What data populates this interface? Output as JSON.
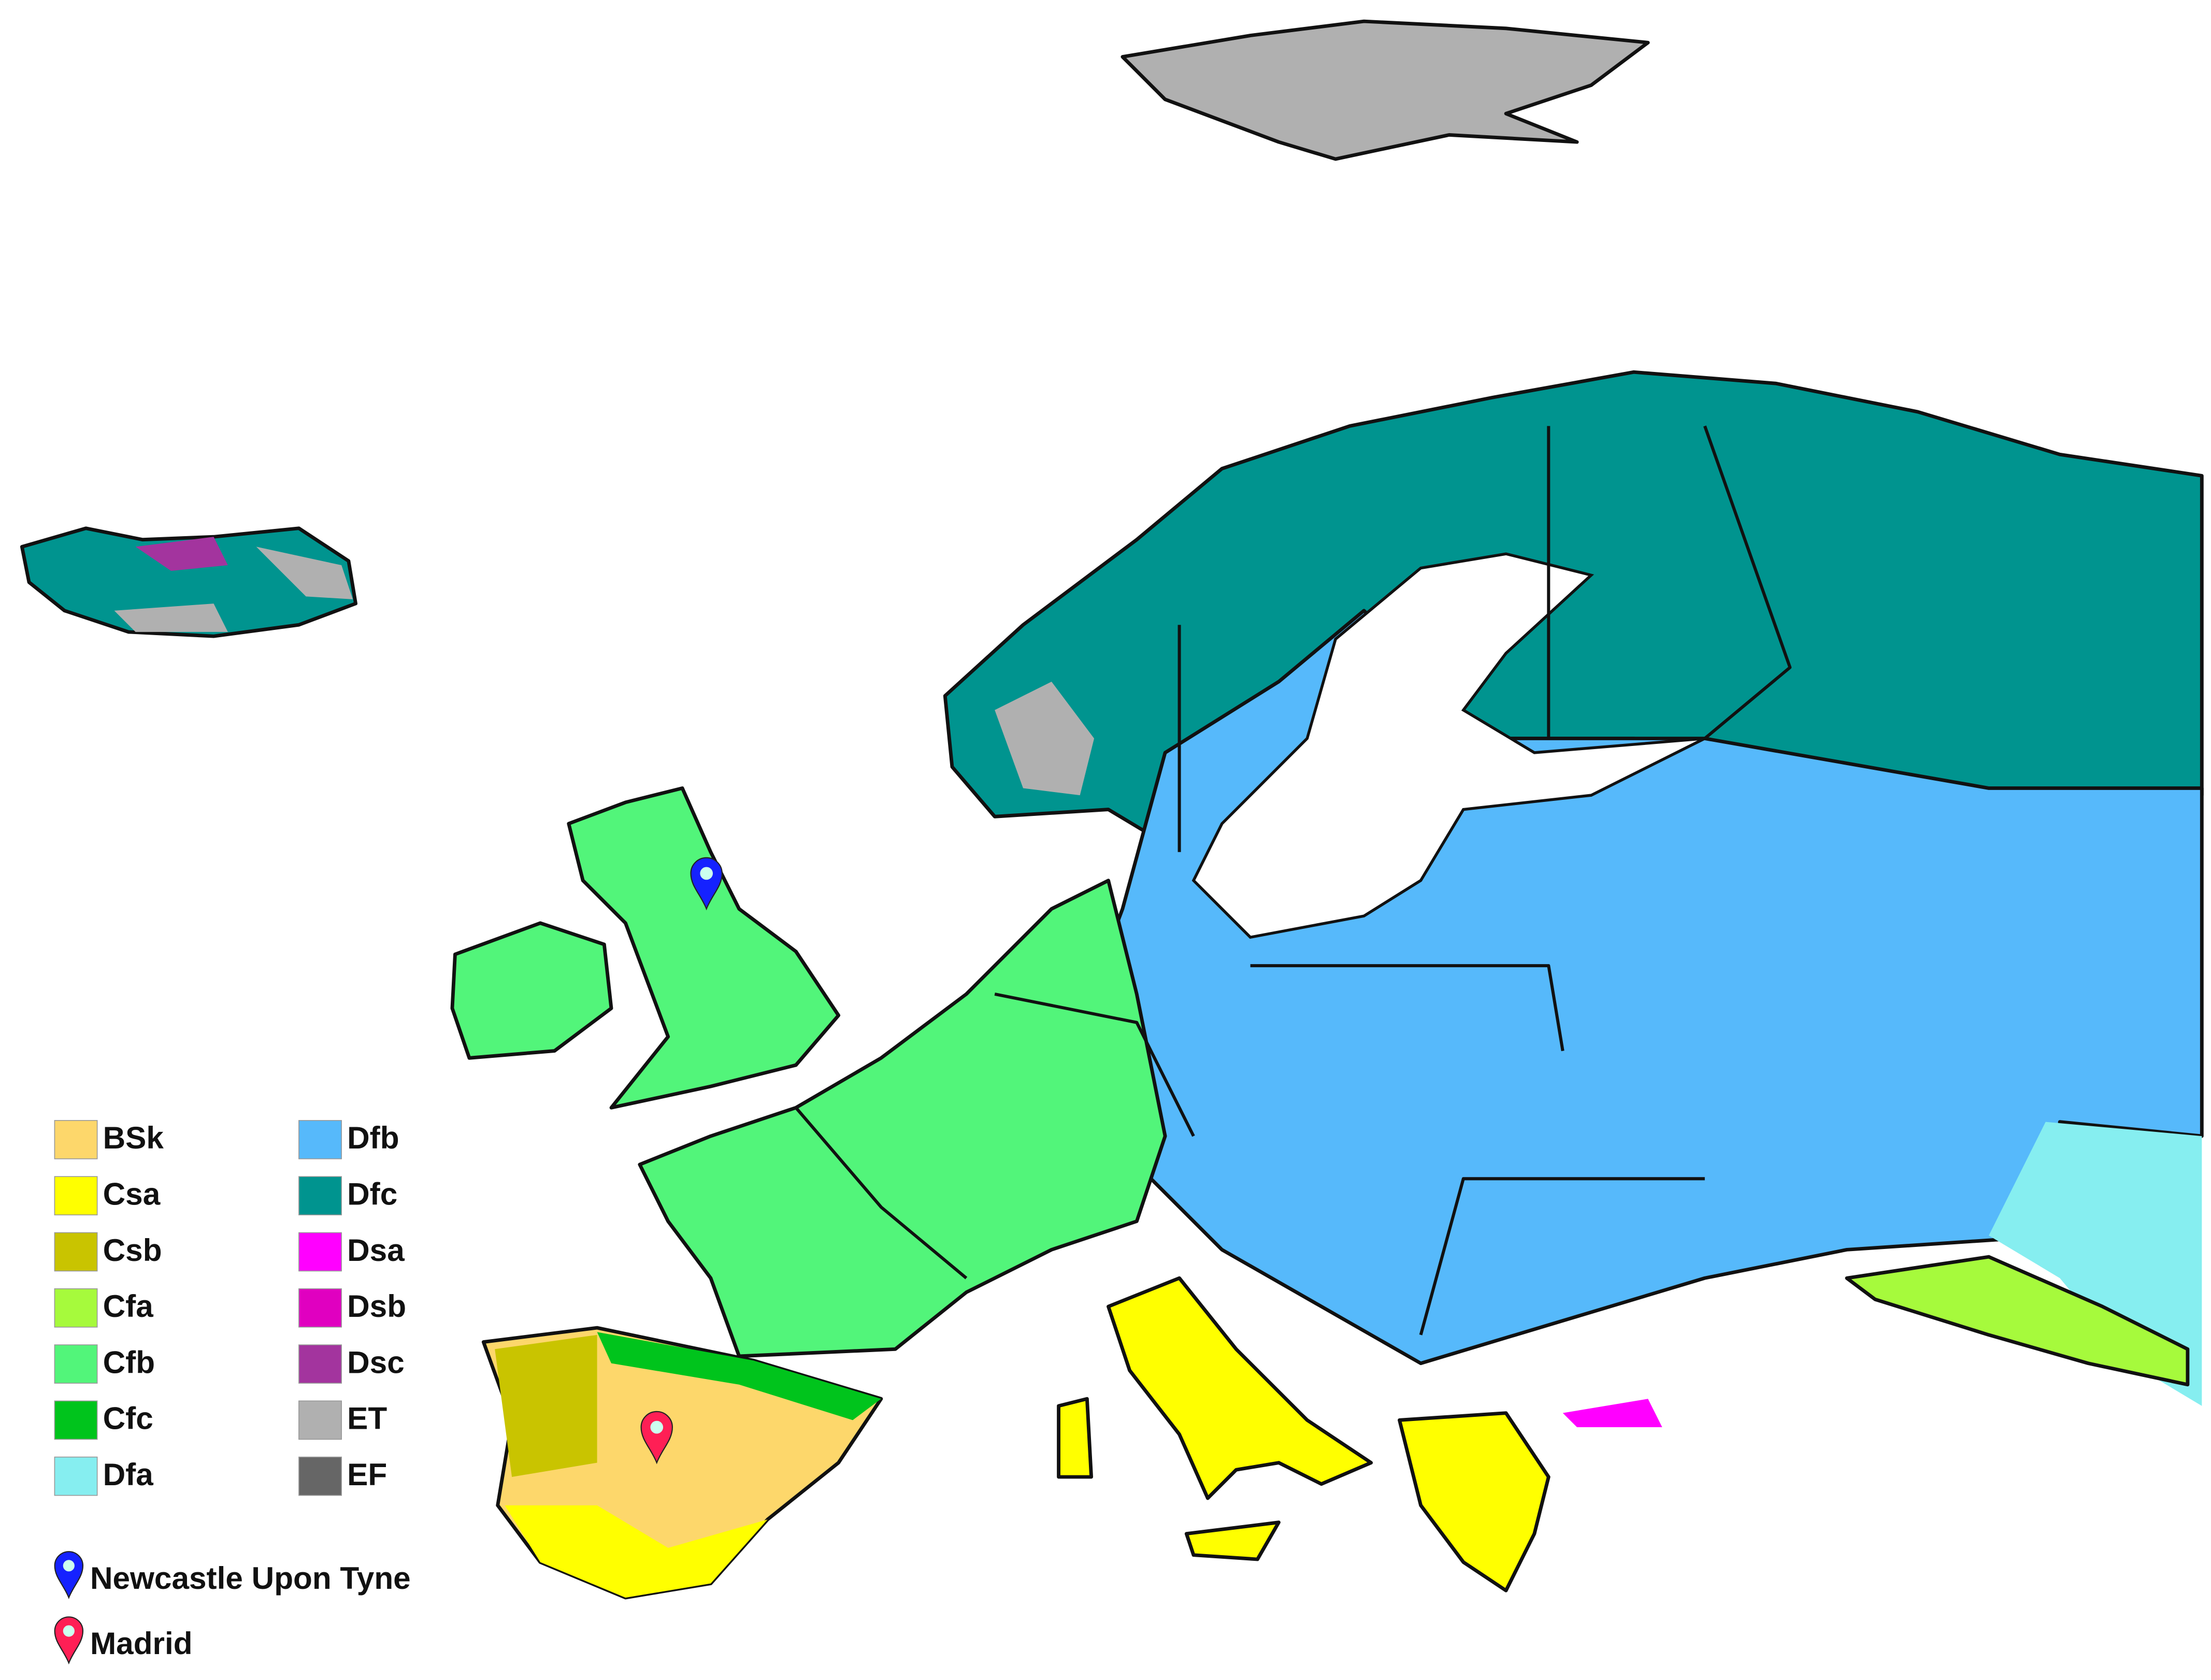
{
  "legend": {
    "items": [
      {
        "label": "BSk",
        "color": "#fdd76b"
      },
      {
        "label": "Csa",
        "color": "#ffff00"
      },
      {
        "label": "Csb",
        "color": "#c9c400"
      },
      {
        "label": "Cfa",
        "color": "#a6fa3c"
      },
      {
        "label": "Cfb",
        "color": "#52f57a"
      },
      {
        "label": "Cfc",
        "color": "#00c41c"
      },
      {
        "label": "Dfa",
        "color": "#86eef0"
      },
      {
        "label": "Dfb",
        "color": "#56b9fb"
      },
      {
        "label": "Dfc",
        "color": "#00948f"
      },
      {
        "label": "Dsa",
        "color": "#ff00ff"
      },
      {
        "label": "Dsb",
        "color": "#e000c0"
      },
      {
        "label": "Dsc",
        "color": "#a3349e"
      },
      {
        "label": "ET",
        "color": "#b0b0b0"
      },
      {
        "label": "EF",
        "color": "#666666"
      }
    ]
  },
  "markers": [
    {
      "label": "Newcastle Upon Tyne",
      "color": "#1522ff"
    },
    {
      "label": "Madrid",
      "color": "#ff1f55"
    }
  ]
}
